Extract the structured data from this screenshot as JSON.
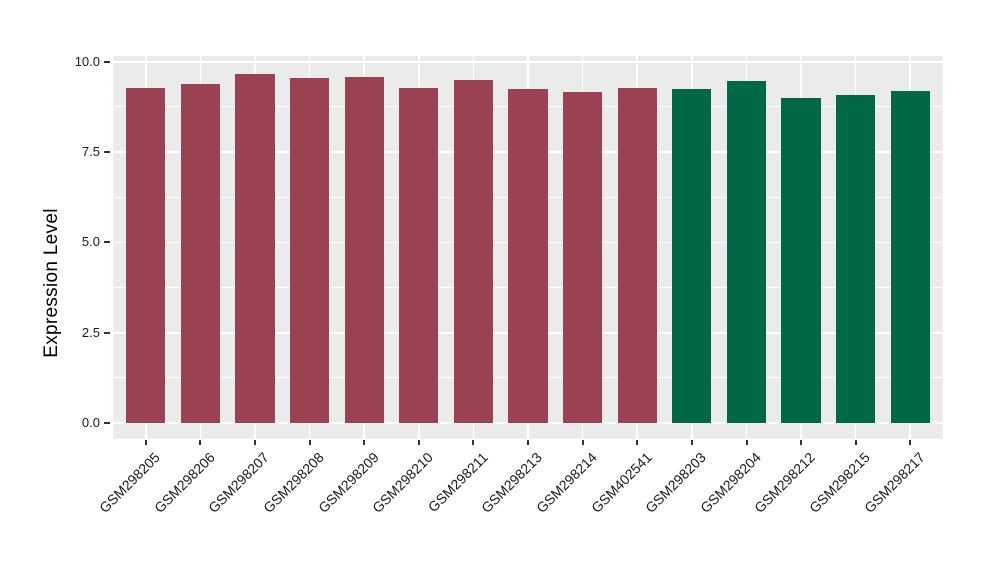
{
  "chart_data": {
    "type": "bar",
    "ylabel": "Expression Level",
    "xlabel": "",
    "ylim": [
      0,
      10
    ],
    "ytick_values": [
      0,
      2.5,
      5,
      7.5,
      10
    ],
    "ytick_labels": [
      "0.0",
      "2.5",
      "5.0",
      "7.5",
      "10.0"
    ],
    "yminor_values": [
      1.25,
      3.75,
      6.25,
      8.75
    ],
    "grid": true,
    "legend_position": "none",
    "categories": [
      "GSM298205",
      "GSM298206",
      "GSM298207",
      "GSM298208",
      "GSM298209",
      "GSM298210",
      "GSM298211",
      "GSM298213",
      "GSM298214",
      "GSM402541",
      "GSM298203",
      "GSM298204",
      "GSM298212",
      "GSM298215",
      "GSM298217"
    ],
    "values": [
      9.27,
      9.39,
      9.65,
      9.54,
      9.57,
      9.27,
      9.5,
      9.26,
      9.17,
      9.28,
      9.25,
      9.46,
      8.99,
      9.09,
      9.19
    ],
    "bar_groups": [
      "A",
      "A",
      "A",
      "A",
      "A",
      "A",
      "A",
      "A",
      "A",
      "A",
      "B",
      "B",
      "B",
      "B",
      "B"
    ],
    "group_colors": {
      "A": "#9B4252",
      "B": "#016847"
    },
    "panel_bg": "#EBEBEB",
    "grid_color": "#FFFFFF"
  }
}
